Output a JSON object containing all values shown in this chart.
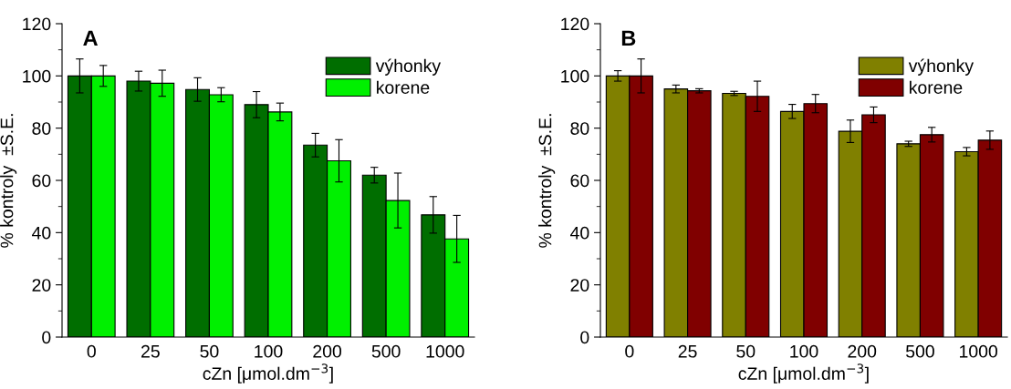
{
  "chart_data": [
    {
      "type": "bar",
      "title": "A",
      "xlabel": "cZn [μmol.dm$^{−3}$]",
      "ylabel": "% kontroly  ±S.E.",
      "categories": [
        "0",
        "25",
        "50",
        "100",
        "200",
        "500",
        "1000"
      ],
      "ylim": [
        0,
        120
      ],
      "yticks": [
        0,
        20,
        40,
        60,
        80,
        100,
        120
      ],
      "legend": "top right",
      "grid": false,
      "series": [
        {
          "name": "výhonky",
          "color": "#006e00",
          "values": [
            100,
            98,
            94.8,
            89,
            73.5,
            62,
            46.8
          ],
          "errors": [
            6.5,
            3.8,
            4.5,
            5,
            4.5,
            3,
            7
          ]
        },
        {
          "name": "korene",
          "color": "#00f000",
          "values": [
            100,
            97.2,
            92.8,
            86.2,
            67.5,
            52.3,
            37.6
          ],
          "errors": [
            4,
            5,
            2.7,
            3.4,
            8.1,
            10.5,
            9
          ]
        }
      ]
    },
    {
      "type": "bar",
      "title": "B",
      "xlabel": "cZn [μmol.dm$^{−3}$]",
      "ylabel": "% kontroly  ±S.E.",
      "categories": [
        "0",
        "25",
        "50",
        "100",
        "200",
        "500",
        "1000"
      ],
      "ylim": [
        0,
        120
      ],
      "yticks": [
        0,
        20,
        40,
        60,
        80,
        100,
        120
      ],
      "legend": "top right",
      "grid": false,
      "series": [
        {
          "name": "výhonky",
          "color": "#808000",
          "values": [
            100,
            95,
            93.3,
            86.4,
            78.8,
            74,
            71
          ],
          "errors": [
            2,
            1.5,
            0.8,
            2.7,
            4.3,
            1,
            1.6
          ]
        },
        {
          "name": "korene",
          "color": "#800000",
          "values": [
            100,
            94.3,
            92.2,
            89.4,
            85.1,
            77.5,
            75.4
          ],
          "errors": [
            6.5,
            0.8,
            5.8,
            3.5,
            3,
            2.8,
            3.5
          ]
        }
      ]
    }
  ]
}
